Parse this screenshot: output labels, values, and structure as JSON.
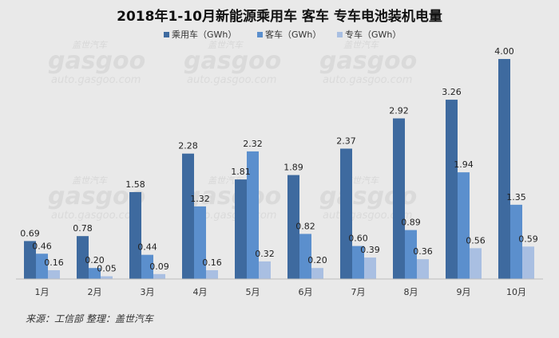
{
  "chart_data": {
    "type": "bar",
    "title": "2018年1-10月新能源乘用车 客车 专车电池装机电量",
    "categories": [
      "1月",
      "2月",
      "3月",
      "4月",
      "5月",
      "6月",
      "7月",
      "8月",
      "9月",
      "10月"
    ],
    "series": [
      {
        "name": "乘用车（GWh）",
        "color": "#3e6a9f",
        "values": [
          0.69,
          0.78,
          1.58,
          2.28,
          1.81,
          1.89,
          2.37,
          2.92,
          3.26,
          4.0
        ]
      },
      {
        "name": "客车（GWh）",
        "color": "#5b8fcd",
        "values": [
          0.46,
          0.2,
          0.44,
          1.32,
          2.32,
          0.82,
          0.6,
          0.89,
          1.94,
          1.35
        ]
      },
      {
        "name": "专车（GWh）",
        "color": "#a9bfe2",
        "values": [
          0.16,
          0.05,
          0.09,
          0.16,
          0.32,
          0.2,
          0.39,
          0.36,
          0.56,
          0.59
        ]
      }
    ],
    "ylim": [
      0,
      4.4
    ],
    "grid": false,
    "legend": "top"
  },
  "source_text": "来源：工信部 整理：盖世汽车",
  "watermark": {
    "brand": "gasgoo",
    "cn": "盖世汽车",
    "url": "auto.gasgoo.com"
  }
}
